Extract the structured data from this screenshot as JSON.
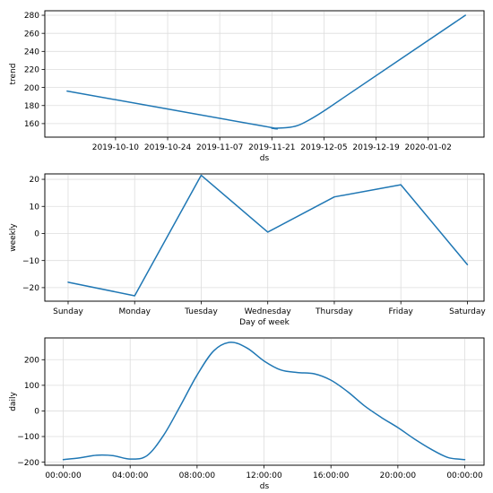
{
  "chart_data": [
    {
      "type": "line",
      "title": "",
      "xlabel": "ds",
      "ylabel": "trend",
      "x_is_date": true,
      "xlim": [
        "2019-09-21",
        "2020-01-17"
      ],
      "ylim": [
        145,
        285
      ],
      "xticks": [
        "2019-10-10",
        "2019-10-24",
        "2019-11-07",
        "2019-11-21",
        "2019-12-05",
        "2019-12-19",
        "2020-01-02"
      ],
      "xtick_labels": [
        "2019-10-10",
        "2019-10-24",
        "2019-11-07",
        "2019-11-21",
        "2019-12-05",
        "2019-12-19",
        "2020-01-02"
      ],
      "yticks": [
        160,
        180,
        200,
        220,
        240,
        260,
        280
      ],
      "ytick_labels": [
        "160",
        "180",
        "200",
        "220",
        "240",
        "260",
        "280"
      ],
      "grid": true,
      "series": [
        {
          "color": "#1f77b4",
          "x": [
            "2019-09-27",
            "2019-11-19",
            "2019-11-21",
            "2019-11-25",
            "2019-11-28",
            "2019-12-01",
            "2019-12-05",
            "2019-12-10",
            "2020-01-12"
          ],
          "values": [
            196,
            157,
            155,
            155.5,
            158,
            164,
            174,
            188,
            280
          ]
        }
      ]
    },
    {
      "type": "line",
      "title": "",
      "xlabel": "Day of week",
      "ylabel": "weekly",
      "categories": [
        "Sunday",
        "Monday",
        "Tuesday",
        "Wednesday",
        "Thursday",
        "Friday",
        "Saturday"
      ],
      "xlim": [
        -0.35,
        6.25
      ],
      "ylim": [
        -25,
        22
      ],
      "yticks": [
        -20,
        -10,
        0,
        10,
        20
      ],
      "ytick_labels": [
        "−20",
        "−10",
        "0",
        "10",
        "20"
      ],
      "grid": true,
      "series": [
        {
          "color": "#1f77b4",
          "values": [
            -18,
            -23,
            21.5,
            0.5,
            13.5,
            18,
            -11.5
          ]
        }
      ]
    },
    {
      "type": "line",
      "title": "",
      "xlabel": "ds",
      "ylabel": "daily",
      "x_unit": "hours",
      "xlim": [
        -1.1,
        25.15
      ],
      "ylim": [
        -212,
        285
      ],
      "xticks": [
        0,
        4,
        8,
        12,
        16,
        20,
        24
      ],
      "xtick_labels": [
        "00:00:00",
        "04:00:00",
        "08:00:00",
        "12:00:00",
        "16:00:00",
        "20:00:00",
        "00:00:00"
      ],
      "yticks": [
        -200,
        -100,
        0,
        100,
        200
      ],
      "ytick_labels": [
        "−200",
        "−100",
        "0",
        "100",
        "200"
      ],
      "grid": true,
      "series": [
        {
          "color": "#1f77b4",
          "x": [
            0,
            1,
            2,
            3,
            4,
            5,
            6,
            7,
            8,
            9,
            10,
            11,
            12,
            13,
            14,
            15,
            16,
            17,
            18,
            19,
            20,
            21,
            22,
            23,
            24
          ],
          "values": [
            -190,
            -183,
            -173,
            -175,
            -188,
            -175,
            -95,
            20,
            140,
            235,
            268,
            245,
            195,
            160,
            150,
            145,
            120,
            75,
            20,
            -25,
            -65,
            -110,
            -150,
            -182,
            -190
          ]
        }
      ]
    }
  ]
}
